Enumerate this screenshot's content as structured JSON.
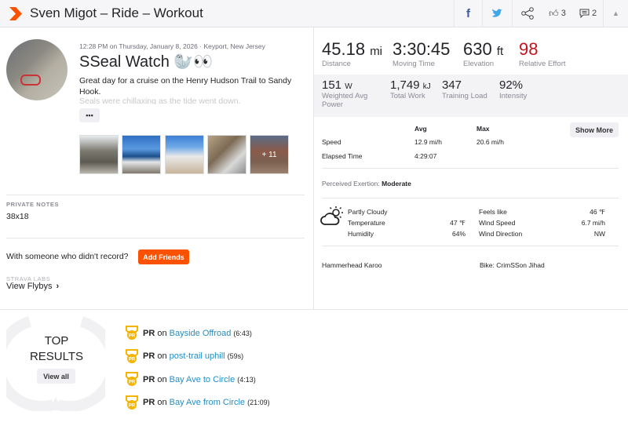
{
  "header": {
    "title": "Sven Migot – Ride – Workout",
    "kudos_count": "3",
    "comments_count": "2"
  },
  "activity": {
    "meta": "12:28 PM on Thursday, January 8, 2026 · Keyport, New Jersey",
    "title": "SSeal Watch 🦭👀",
    "description_1": "Great day for a cruise on the Henry Hudson Trail to Sandy Hook.",
    "description_2": "Seals were chillaxing as the tide went down.",
    "more_label": "•••",
    "photos_more": "+ 11"
  },
  "notes": {
    "label": "PRIVATE NOTES",
    "value": "38x18"
  },
  "friends": {
    "prompt": "With someone who didn't record?",
    "button": "Add Friends"
  },
  "labs": {
    "label": "STRAVA LABS",
    "link": "View Flybys"
  },
  "stats": [
    {
      "value": "45.18",
      "unit": "mi",
      "label": "Distance"
    },
    {
      "value": "3:30:45",
      "unit": "",
      "label": "Moving Time"
    },
    {
      "value": "630",
      "unit": "ft",
      "label": "Elevation"
    },
    {
      "value": "98",
      "unit": "",
      "label": "Relative Effort",
      "color": "#c4131f"
    }
  ],
  "secondary_stats": [
    {
      "value": "151",
      "unit": "W",
      "label": "Weighted Avg Power"
    },
    {
      "value": "1,749",
      "unit": "kJ",
      "label": "Total Work"
    },
    {
      "value": "347",
      "unit": "",
      "label": "Training Load"
    },
    {
      "value": "92%",
      "unit": "",
      "label": "Intensity"
    }
  ],
  "splits": {
    "avg_header": "Avg",
    "max_header": "Max",
    "show_more": "Show More",
    "rows": [
      {
        "label": "Speed",
        "avg": "12.9 mi/h",
        "max": "20.6 mi/h"
      },
      {
        "label": "Elapsed Time",
        "avg": "4:29:07",
        "max": ""
      }
    ]
  },
  "exertion": {
    "label": "Perceived Exertion:",
    "value": "Moderate"
  },
  "weather": {
    "condition": "Partly Cloudy",
    "icon": "partly-cloudy-icon",
    "left": [
      {
        "label": "Temperature",
        "value": "47 ℉"
      },
      {
        "label": "Humidity",
        "value": "64%"
      }
    ],
    "right": [
      {
        "label": "Feels like",
        "value": "46 ℉"
      },
      {
        "label": "Wind Speed",
        "value": "6.7 mi/h"
      },
      {
        "label": "Wind Direction",
        "value": "NW"
      }
    ]
  },
  "device": "Hammerhead Karoo",
  "bike": "Bike: CrimSSon Jihad",
  "top_results": {
    "title_1": "TOP",
    "title_2": "RESULTS",
    "view_all": "View all",
    "items": [
      {
        "badge": "PR",
        "on": "on",
        "segment": "Bayside Offroad",
        "time": "(6:43)"
      },
      {
        "badge": "PR",
        "on": "on",
        "segment": "post-trail uphill",
        "time": "(59s)"
      },
      {
        "badge": "PR",
        "on": "on",
        "segment": "Bay Ave to Circle",
        "time": "(4:13)"
      },
      {
        "badge": "PR",
        "on": "on",
        "segment": "Bay Ave from Circle",
        "time": "(21:09)"
      }
    ]
  },
  "colors": {
    "brand": "#fc5200",
    "relative_effort": "#c4131f",
    "link": "#1f8fc7",
    "pr_badge": "#f5b400"
  }
}
